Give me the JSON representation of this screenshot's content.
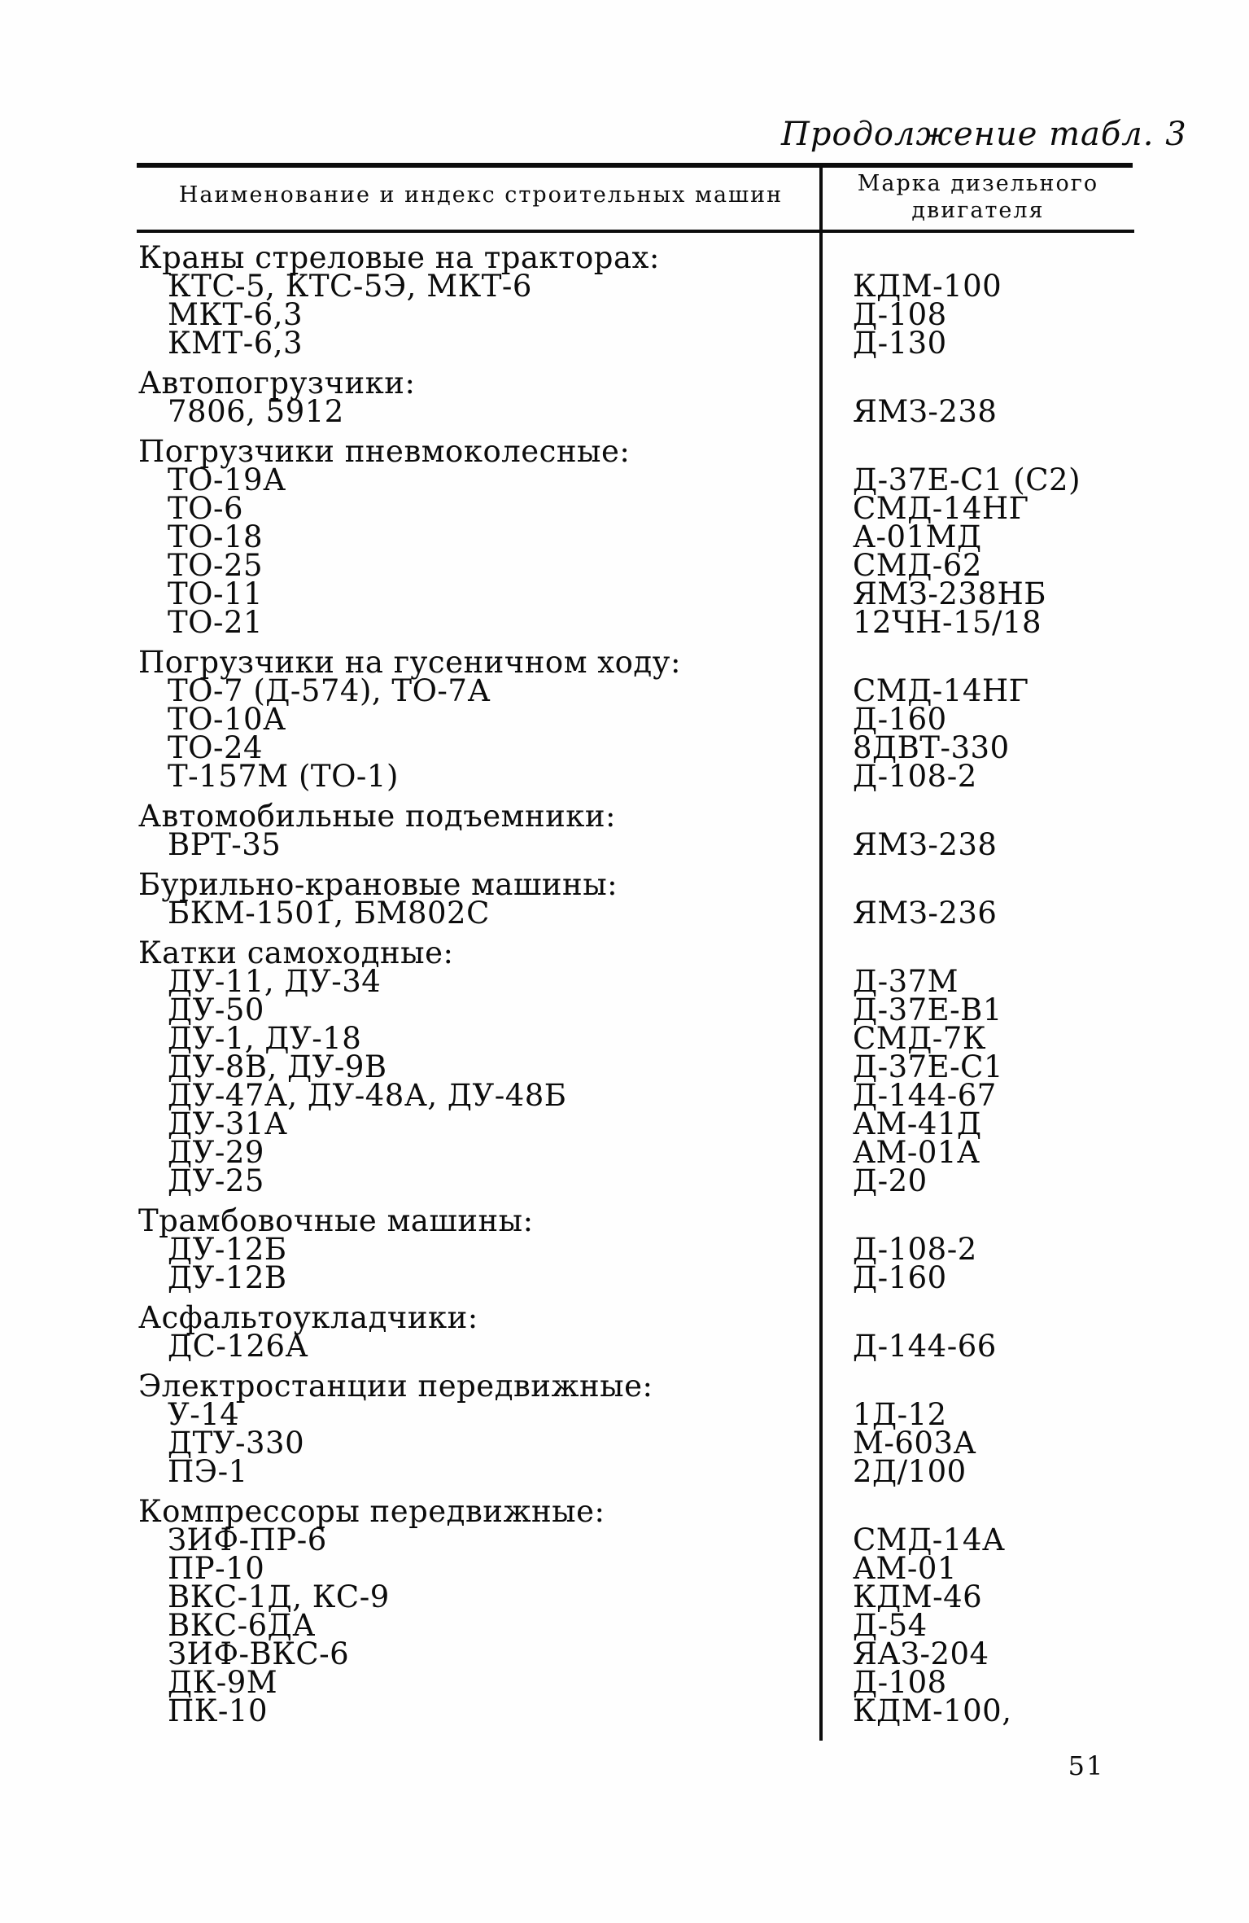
{
  "page": {
    "continuation_title": "Продолжение табл. 3",
    "page_number": "51"
  },
  "table": {
    "header": {
      "col1": "Наименование и индекс строительных машин",
      "col2": "Марка дизельного двигателя"
    },
    "sections": [
      {
        "title": "Краны стреловые на тракторах:",
        "rows": [
          {
            "machine": "КТС-5, КТС-5Э, МКТ-6",
            "engine": "КДМ-100"
          },
          {
            "machine": "МКТ-6,3",
            "engine": "Д-108"
          },
          {
            "machine": "КМТ-6,3",
            "engine": "Д-130"
          }
        ]
      },
      {
        "title": "Автопогрузчики:",
        "rows": [
          {
            "machine": "7806, 5912",
            "engine": "ЯМЗ-238"
          }
        ]
      },
      {
        "title": "Погрузчики пневмоколесные:",
        "rows": [
          {
            "machine": "ТО-19А",
            "engine": "Д-37Е-С1 (С2)"
          },
          {
            "machine": "ТО-6",
            "engine": "СМД-14НГ"
          },
          {
            "machine": "ТО-18",
            "engine": "А-01МД"
          },
          {
            "machine": "ТО-25",
            "engine": "СМД-62"
          },
          {
            "machine": "ТО-11",
            "engine": "ЯМЗ-238НБ"
          },
          {
            "machine": "ТО-21",
            "engine": "12ЧН-15/18"
          }
        ]
      },
      {
        "title": "Погрузчики на гусеничном ходу:",
        "rows": [
          {
            "machine": "ТО-7 (Д-574), ТО-7А",
            "engine": "СМД-14НГ"
          },
          {
            "machine": "ТО-10А",
            "engine": "Д-160"
          },
          {
            "machine": "ТО-24",
            "engine": "8ДВТ-330"
          },
          {
            "machine": "Т-157М (ТО-1)",
            "engine": "Д-108-2"
          }
        ]
      },
      {
        "title": "Автомобильные подъемники:",
        "rows": [
          {
            "machine": "ВРТ-35",
            "engine": "ЯМЗ-238"
          }
        ]
      },
      {
        "title": "Бурильно-крановые машины:",
        "rows": [
          {
            "machine": "БКМ-1501, БМ802С",
            "engine": "ЯМЗ-236"
          }
        ]
      },
      {
        "title": "Катки самоходные:",
        "rows": [
          {
            "machine": "ДУ-11, ДУ-34",
            "engine": "Д-37М"
          },
          {
            "machine": "ДУ-50",
            "engine": "Д-37Е-В1"
          },
          {
            "machine": "ДУ-1, ДУ-18",
            "engine": "СМД-7К"
          },
          {
            "machine": "ДУ-8В, ДУ-9В",
            "engine": "Д-37Е-С1"
          },
          {
            "machine": "ДУ-47А, ДУ-48А, ДУ-48Б",
            "engine": "Д-144-67"
          },
          {
            "machine": "ДУ-31А",
            "engine": "АМ-41Д"
          },
          {
            "machine": "ДУ-29",
            "engine": "АМ-01А"
          },
          {
            "machine": "ДУ-25",
            "engine": "Д-20"
          }
        ]
      },
      {
        "title": "Трамбовочные машины:",
        "rows": [
          {
            "machine": "ДУ-12Б",
            "engine": "Д-108-2"
          },
          {
            "machine": "ДУ-12В",
            "engine": "Д-160"
          }
        ]
      },
      {
        "title": "Асфальтоукладчики:",
        "rows": [
          {
            "machine": "ДС-126А",
            "engine": "Д-144-66"
          }
        ]
      },
      {
        "title": "Электростанции передвижные:",
        "rows": [
          {
            "machine": "У-14",
            "engine": "1Д-12"
          },
          {
            "machine": "ДТУ-330",
            "engine": "М-603А"
          },
          {
            "machine": "ПЭ-1",
            "engine": "2Д/100"
          }
        ]
      },
      {
        "title": "Компрессоры передвижные:",
        "rows": [
          {
            "machine": "ЗИФ-ПР-6",
            "engine": "СМД-14А"
          },
          {
            "machine": "ПР-10",
            "engine": "АМ-01"
          },
          {
            "machine": "ВКС-1Д, КС-9",
            "engine": "КДМ-46"
          },
          {
            "machine": "ВКС-6ДА",
            "engine": "Д-54"
          },
          {
            "machine": "ЗИФ-ВКС-6",
            "engine": "ЯАЗ-204"
          },
          {
            "machine": "ДК-9М",
            "engine": "Д-108"
          },
          {
            "machine": "ПК-10",
            "engine": "КДМ-100,"
          }
        ]
      }
    ]
  }
}
